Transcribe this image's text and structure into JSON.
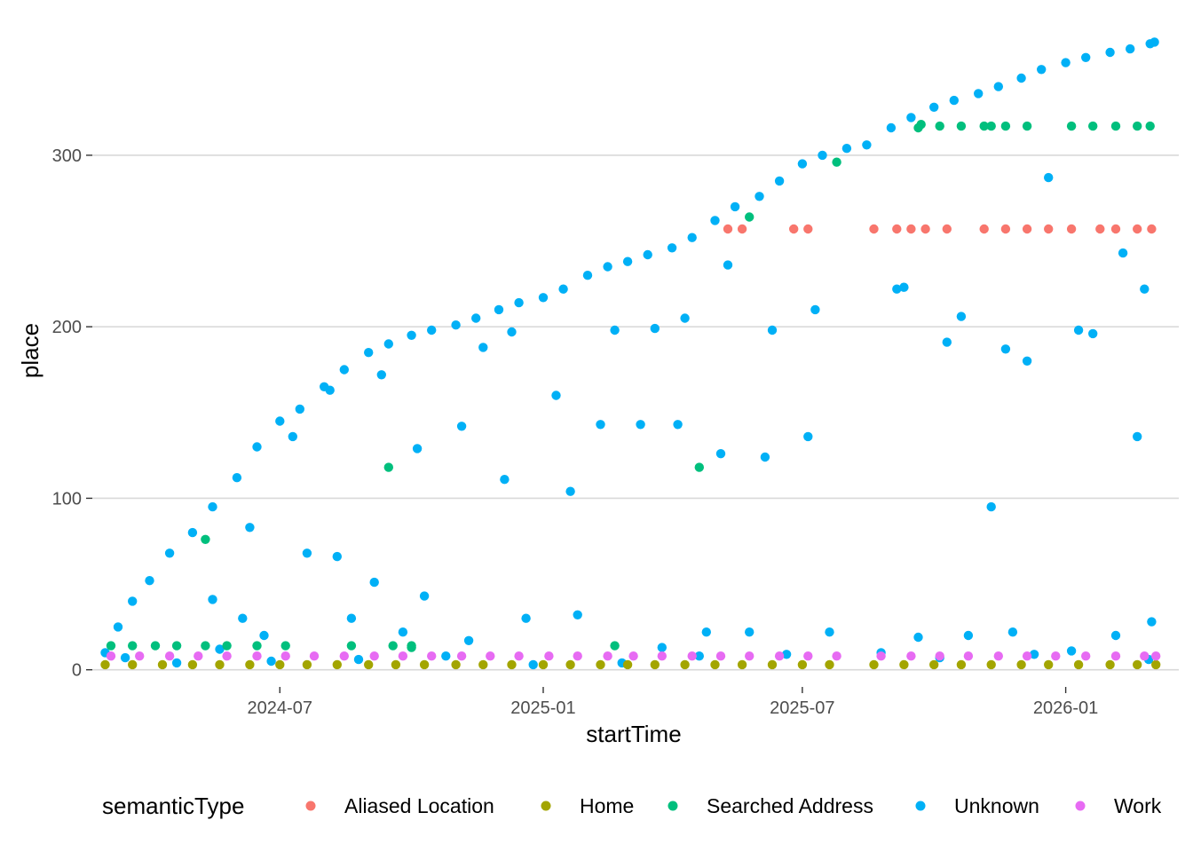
{
  "chart_data": {
    "type": "scatter",
    "title": "",
    "xlabel": "startTime",
    "ylabel": "place",
    "x_is_date": true,
    "xlim": [
      "2024-02-21",
      "2026-03-21"
    ],
    "ylim": [
      -10,
      375
    ],
    "x_ticks": [
      {
        "date": "2024-07-01",
        "label": "2024-07"
      },
      {
        "date": "2025-01-01",
        "label": "2025-01"
      },
      {
        "date": "2025-07-01",
        "label": "2025-07"
      },
      {
        "date": "2026-01-01",
        "label": "2026-01"
      }
    ],
    "y_ticks": [
      {
        "value": 0,
        "label": "0"
      },
      {
        "value": 100,
        "label": "100"
      },
      {
        "value": 200,
        "label": "200"
      },
      {
        "value": 300,
        "label": "300"
      }
    ],
    "grid": "horizontal major only",
    "legend": {
      "title": "semanticType",
      "position": "bottom",
      "entries": [
        {
          "name": "Aliased Location",
          "color": "#F8766D"
        },
        {
          "name": "Home",
          "color": "#A3A500"
        },
        {
          "name": "Searched Address",
          "color": "#00BF7D"
        },
        {
          "name": "Unknown",
          "color": "#00B0F6"
        },
        {
          "name": "Work",
          "color": "#E76BF3"
        }
      ]
    },
    "series": [
      {
        "name": "Unknown",
        "color": "#00B0F6",
        "x": [
          "2024-03-01",
          "2024-03-10",
          "2024-03-20",
          "2024-04-01",
          "2024-04-15",
          "2024-05-01",
          "2024-05-15",
          "2024-06-01",
          "2024-06-15",
          "2024-07-01",
          "2024-07-15",
          "2024-08-01",
          "2024-08-15",
          "2024-09-01",
          "2024-09-15",
          "2024-10-01",
          "2024-10-15",
          "2024-11-01",
          "2024-11-15",
          "2024-12-01",
          "2024-12-15",
          "2025-01-01",
          "2025-01-15",
          "2025-02-01",
          "2025-02-15",
          "2025-03-01",
          "2025-03-15",
          "2025-04-01",
          "2025-04-15",
          "2025-05-01",
          "2025-05-15",
          "2025-06-01",
          "2025-06-15",
          "2025-07-01",
          "2025-07-15",
          "2025-08-01",
          "2025-08-15",
          "2025-09-01",
          "2025-09-15",
          "2025-10-01",
          "2025-10-15",
          "2025-11-01",
          "2025-11-15",
          "2025-12-01",
          "2025-12-15",
          "2026-01-01",
          "2026-01-15",
          "2026-02-01",
          "2026-02-15",
          "2026-03-01",
          "2026-03-04",
          "2024-05-15",
          "2024-06-10",
          "2024-07-20",
          "2024-08-10",
          "2024-09-05",
          "2024-10-10",
          "2024-11-20",
          "2024-12-10",
          "2025-01-20",
          "2025-02-20",
          "2025-03-20",
          "2025-04-10",
          "2025-05-10",
          "2025-06-10",
          "2025-07-10",
          "2025-09-10",
          "2025-10-20",
          "2025-11-20",
          "2025-12-20",
          "2026-01-10",
          "2026-02-10",
          "2026-02-25",
          "2024-06-05",
          "2024-07-10",
          "2024-08-05",
          "2024-09-10",
          "2024-10-05",
          "2024-11-05",
          "2024-12-05",
          "2025-01-10",
          "2025-02-10",
          "2025-03-10",
          "2025-04-05",
          "2025-05-05",
          "2025-06-05",
          "2025-07-05",
          "2025-09-05",
          "2025-10-10",
          "2025-11-10",
          "2025-12-05",
          "2026-01-20",
          "2026-02-20",
          "2024-05-20",
          "2024-06-20",
          "2024-08-20",
          "2024-09-25",
          "2024-11-10",
          "2024-12-20",
          "2025-01-25",
          "2025-03-25",
          "2025-04-25",
          "2025-05-25",
          "2025-07-20",
          "2025-09-20",
          "2025-10-25",
          "2025-11-25",
          "2026-02-05",
          "2026-03-02",
          "2024-03-15",
          "2024-04-20",
          "2024-06-25",
          "2024-08-25",
          "2024-10-25",
          "2024-12-25",
          "2025-02-25",
          "2025-04-20",
          "2025-06-20",
          "2025-08-25",
          "2025-10-05",
          "2025-12-10",
          "2026-01-05",
          "2026-02-28"
        ],
        "y": [
          10,
          25,
          40,
          52,
          68,
          80,
          95,
          112,
          130,
          145,
          152,
          165,
          175,
          185,
          190,
          195,
          198,
          201,
          205,
          210,
          214,
          217,
          222,
          230,
          235,
          238,
          242,
          246,
          252,
          262,
          270,
          276,
          285,
          295,
          300,
          304,
          306,
          316,
          322,
          328,
          332,
          336,
          340,
          345,
          350,
          354,
          357,
          360,
          362,
          365,
          366,
          41,
          83,
          68,
          66,
          51,
          43,
          188,
          197,
          104,
          198,
          199,
          205,
          236,
          198,
          210,
          223,
          206,
          187,
          287,
          198,
          243,
          222,
          30,
          136,
          163,
          172,
          129,
          142,
          111,
          160,
          143,
          143,
          143,
          126,
          124,
          136,
          222,
          191,
          95,
          180,
          196,
          136,
          12,
          20,
          30,
          22,
          17,
          30,
          32,
          13,
          22,
          22,
          22,
          19,
          20,
          22,
          20,
          28,
          7,
          4,
          5,
          6,
          8,
          3,
          4,
          8,
          9,
          10,
          7,
          9,
          11,
          6
        ]
      },
      {
        "name": "Searched Address",
        "color": "#00BF7D",
        "x": [
          "2024-03-05",
          "2024-03-20",
          "2024-04-05",
          "2024-04-20",
          "2024-05-10",
          "2024-05-25",
          "2024-06-15",
          "2024-07-05",
          "2024-08-20",
          "2024-09-15",
          "2024-09-18",
          "2024-10-01",
          "2025-02-20",
          "2025-04-20",
          "2025-05-25",
          "2025-07-25",
          "2025-09-20",
          "2025-09-22",
          "2025-10-05",
          "2025-10-20",
          "2025-11-05",
          "2025-11-10",
          "2025-11-20",
          "2025-12-05",
          "2026-01-05",
          "2026-01-20",
          "2026-02-05",
          "2026-02-20",
          "2026-03-01",
          "2024-05-10",
          "2024-10-01"
        ],
        "y": [
          14,
          14,
          14,
          14,
          14,
          14,
          14,
          14,
          14,
          118,
          14,
          14,
          14,
          118,
          264,
          296,
          316,
          318,
          317,
          317,
          317,
          317,
          317,
          317,
          317,
          317,
          317,
          317,
          317,
          76,
          13
        ]
      },
      {
        "name": "Aliased Location",
        "color": "#F8766D",
        "x": [
          "2025-05-10",
          "2025-05-20",
          "2025-06-25",
          "2025-07-05",
          "2025-08-20",
          "2025-09-05",
          "2025-09-15",
          "2025-09-25",
          "2025-10-10",
          "2025-11-05",
          "2025-11-20",
          "2025-12-05",
          "2025-12-20",
          "2026-01-05",
          "2026-01-25",
          "2026-02-05",
          "2026-02-20",
          "2026-03-02"
        ],
        "y": [
          257,
          257,
          257,
          257,
          257,
          257,
          257,
          257,
          257,
          257,
          257,
          257,
          257,
          257,
          257,
          257,
          257,
          257
        ]
      },
      {
        "name": "Home",
        "color": "#A3A500",
        "x": [
          "2024-03-01",
          "2024-03-20",
          "2024-04-10",
          "2024-05-01",
          "2024-05-20",
          "2024-06-10",
          "2024-07-01",
          "2024-07-20",
          "2024-08-10",
          "2024-09-01",
          "2024-09-20",
          "2024-10-10",
          "2024-11-01",
          "2024-11-20",
          "2024-12-10",
          "2025-01-01",
          "2025-01-20",
          "2025-02-10",
          "2025-03-01",
          "2025-03-20",
          "2025-04-10",
          "2025-05-01",
          "2025-05-20",
          "2025-06-10",
          "2025-07-01",
          "2025-07-20",
          "2025-08-20",
          "2025-09-10",
          "2025-10-01",
          "2025-10-20",
          "2025-11-10",
          "2025-12-01",
          "2025-12-20",
          "2026-01-10",
          "2026-02-01",
          "2026-02-20",
          "2026-03-05"
        ],
        "y": [
          3,
          3,
          3,
          3,
          3,
          3,
          3,
          3,
          3,
          3,
          3,
          3,
          3,
          3,
          3,
          3,
          3,
          3,
          3,
          3,
          3,
          3,
          3,
          3,
          3,
          3,
          3,
          3,
          3,
          3,
          3,
          3,
          3,
          3,
          3,
          3,
          3
        ]
      },
      {
        "name": "Work",
        "color": "#E76BF3",
        "x": [
          "2024-03-05",
          "2024-03-25",
          "2024-04-15",
          "2024-05-05",
          "2024-05-25",
          "2024-06-15",
          "2024-07-05",
          "2024-07-25",
          "2024-08-15",
          "2024-09-05",
          "2024-09-25",
          "2024-10-15",
          "2024-11-05",
          "2024-11-25",
          "2024-12-15",
          "2025-01-05",
          "2025-01-25",
          "2025-02-15",
          "2025-03-05",
          "2025-03-25",
          "2025-04-15",
          "2025-05-05",
          "2025-05-25",
          "2025-06-15",
          "2025-07-05",
          "2025-07-25",
          "2025-08-25",
          "2025-09-15",
          "2025-10-05",
          "2025-10-25",
          "2025-11-15",
          "2025-12-05",
          "2025-12-25",
          "2026-01-15",
          "2026-02-05",
          "2026-02-25",
          "2026-03-05"
        ],
        "y": [
          8,
          8,
          8,
          8,
          8,
          8,
          8,
          8,
          8,
          8,
          8,
          8,
          8,
          8,
          8,
          8,
          8,
          8,
          8,
          8,
          8,
          8,
          8,
          8,
          8,
          8,
          8,
          8,
          8,
          8,
          8,
          8,
          8,
          8,
          8,
          8,
          8
        ]
      }
    ]
  }
}
